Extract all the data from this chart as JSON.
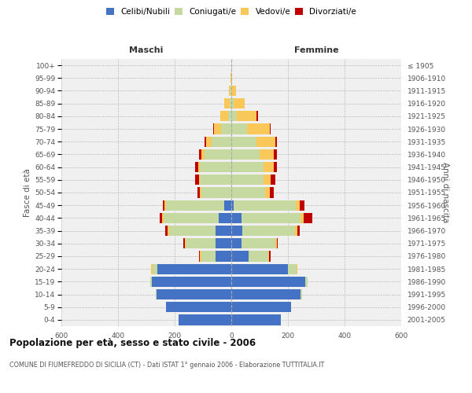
{
  "age_groups": [
    "0-4",
    "5-9",
    "10-14",
    "15-19",
    "20-24",
    "25-29",
    "30-34",
    "35-39",
    "40-44",
    "45-49",
    "50-54",
    "55-59",
    "60-64",
    "65-69",
    "70-74",
    "75-79",
    "80-84",
    "85-89",
    "90-94",
    "95-99",
    "100+"
  ],
  "birth_years": [
    "2001-2005",
    "1996-2000",
    "1991-1995",
    "1986-1990",
    "1981-1985",
    "1976-1980",
    "1971-1975",
    "1966-1970",
    "1961-1965",
    "1956-1960",
    "1951-1955",
    "1946-1950",
    "1941-1945",
    "1936-1940",
    "1931-1935",
    "1926-1930",
    "1921-1925",
    "1916-1920",
    "1911-1915",
    "1906-1910",
    "≤ 1905"
  ],
  "male": {
    "celibe": [
      185,
      230,
      265,
      280,
      260,
      55,
      55,
      55,
      45,
      25,
      0,
      0,
      0,
      0,
      0,
      0,
      0,
      0,
      0,
      0,
      0
    ],
    "coniugato": [
      0,
      0,
      2,
      5,
      18,
      50,
      105,
      165,
      195,
      205,
      105,
      110,
      110,
      95,
      70,
      35,
      10,
      5,
      2,
      0,
      0
    ],
    "vedovo": [
      0,
      0,
      0,
      0,
      5,
      5,
      5,
      5,
      5,
      5,
      5,
      5,
      8,
      10,
      20,
      25,
      30,
      20,
      5,
      2,
      0
    ],
    "divorziato": [
      0,
      0,
      0,
      0,
      0,
      5,
      5,
      8,
      8,
      8,
      10,
      12,
      10,
      10,
      5,
      5,
      0,
      0,
      0,
      0,
      0
    ]
  },
  "female": {
    "nubile": [
      175,
      210,
      245,
      260,
      200,
      60,
      35,
      40,
      35,
      8,
      0,
      0,
      0,
      0,
      0,
      0,
      0,
      0,
      0,
      0,
      0
    ],
    "coniugata": [
      0,
      0,
      5,
      10,
      30,
      70,
      120,
      185,
      210,
      220,
      120,
      115,
      115,
      100,
      90,
      55,
      20,
      8,
      2,
      0,
      0
    ],
    "vedova": [
      0,
      0,
      0,
      0,
      3,
      3,
      5,
      8,
      10,
      15,
      15,
      25,
      35,
      50,
      65,
      80,
      70,
      40,
      15,
      3,
      0
    ],
    "divorziata": [
      0,
      0,
      0,
      0,
      0,
      5,
      5,
      8,
      30,
      15,
      15,
      15,
      10,
      10,
      5,
      5,
      5,
      0,
      0,
      0,
      0
    ]
  },
  "colors": {
    "celibe": "#4472C4",
    "coniugato": "#C5D9A0",
    "vedovo": "#FAC858",
    "divorziato": "#C00000"
  },
  "xlim": 600,
  "title": "Popolazione per età, sesso e stato civile - 2006",
  "subtitle": "COMUNE DI FIUMEFREDDO DI SICILIA (CT) - Dati ISTAT 1° gennaio 2006 - Elaborazione TUTTITALIA.IT",
  "xlabel_left": "Maschi",
  "xlabel_right": "Femmine",
  "ylabel_left": "Fasce di età",
  "ylabel_right": "Anni di nascita",
  "bg_color": "#ffffff",
  "plot_bg": "#f0f0f0",
  "grid_color": "#cccccc",
  "legend_labels": [
    "Celibi/Nubili",
    "Coniugati/e",
    "Vedovi/e",
    "Divorziati/e"
  ]
}
